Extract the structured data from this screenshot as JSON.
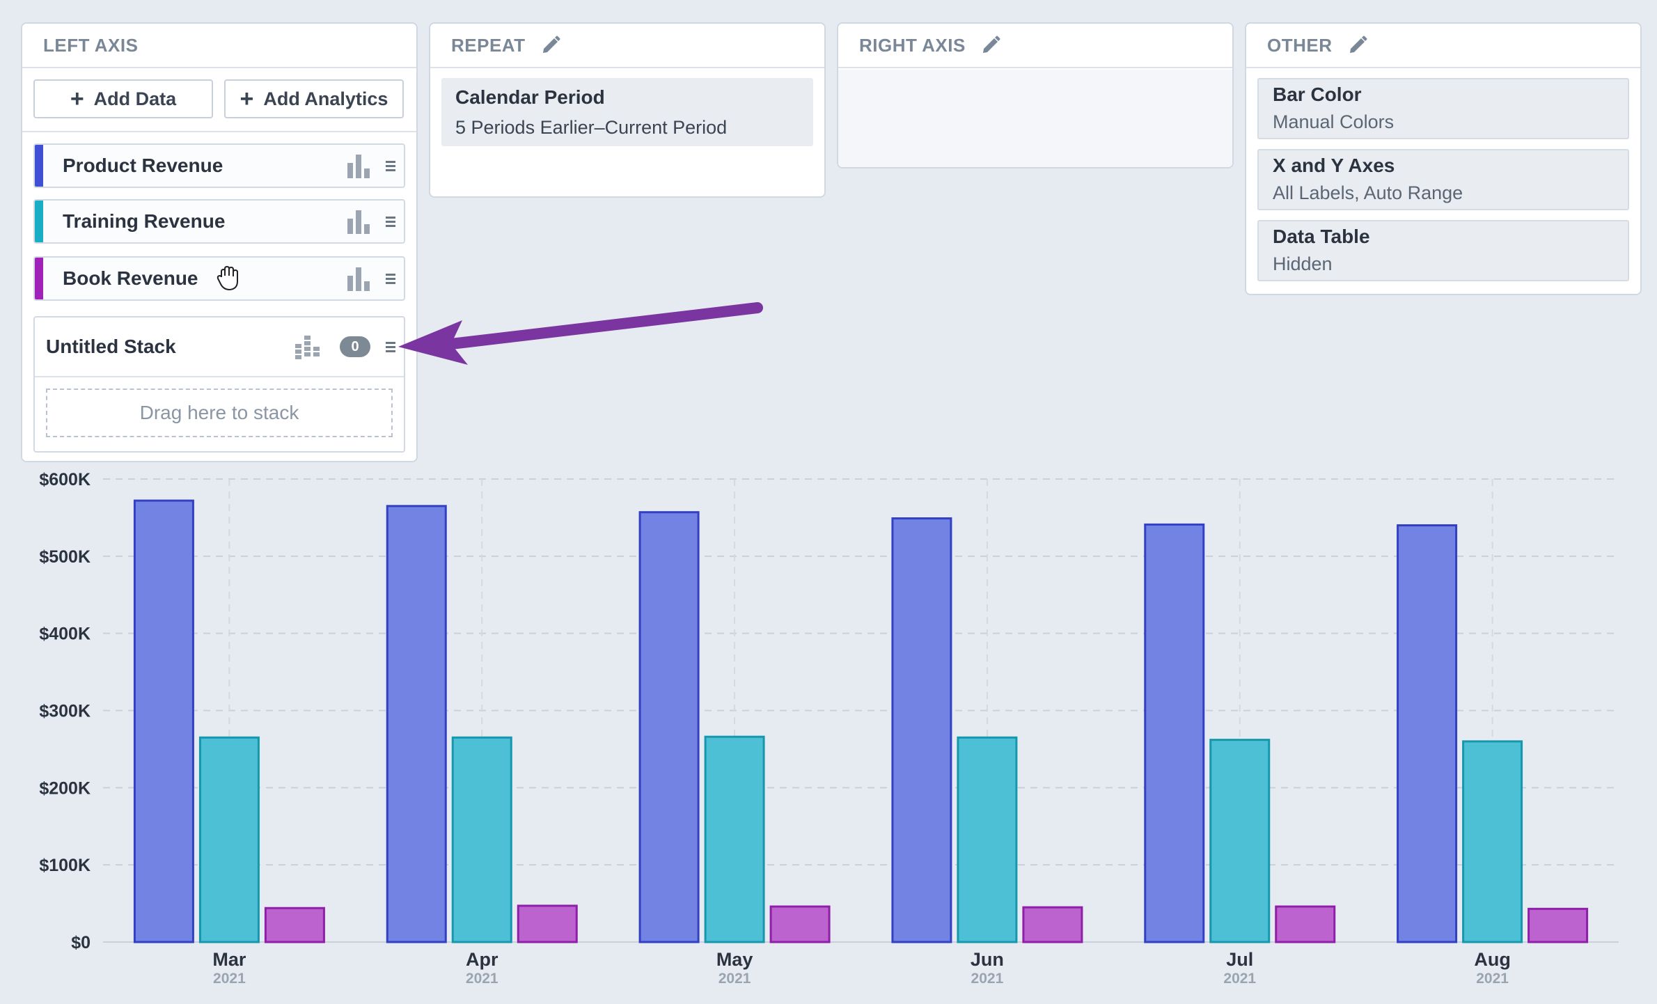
{
  "left_axis": {
    "title": "LEFT AXIS",
    "add_data_label": "Add Data",
    "add_analytics_label": "Add Analytics",
    "series": [
      {
        "label": "Product Revenue",
        "color": "#3f4fd6"
      },
      {
        "label": "Training Revenue",
        "color": "#1aaec4"
      },
      {
        "label": "Book Revenue",
        "color": "#a022b8"
      }
    ],
    "stack": {
      "title": "Untitled Stack",
      "count": "0",
      "drop_hint": "Drag here to stack"
    }
  },
  "repeat": {
    "title": "REPEAT",
    "card_title": "Calendar Period",
    "card_value": "5 Periods Earlier–Current Period"
  },
  "right_axis": {
    "title": "RIGHT AXIS"
  },
  "other": {
    "title": "OTHER",
    "items": [
      {
        "title": "Bar Color",
        "value": "Manual Colors"
      },
      {
        "title": "X and Y Axes",
        "value": "All Labels, Auto Range"
      },
      {
        "title": "Data Table",
        "value": "Hidden"
      }
    ]
  },
  "icons": [
    "plus-icon",
    "pencil-icon",
    "bar-chart-icon",
    "drag-handle-icon",
    "stacked-bar-icon",
    "grab-hand-cursor",
    "pointer-arrow"
  ],
  "accent_colors": {
    "arrow": "#7a35a0"
  },
  "chart_data": {
    "type": "bar",
    "categories": [
      "Mar",
      "Apr",
      "May",
      "Jun",
      "Jul",
      "Aug"
    ],
    "category_sublabels": [
      "2021",
      "2021",
      "2021",
      "2021",
      "2021",
      "2021"
    ],
    "series": [
      {
        "name": "Product Revenue",
        "values": [
          572000,
          565000,
          557000,
          549000,
          541000,
          540000
        ],
        "fill": "#7383e3",
        "stroke": "#3340c4"
      },
      {
        "name": "Training Revenue",
        "values": [
          265000,
          265000,
          266000,
          265000,
          262000,
          260000
        ],
        "fill": "#4ec0d5",
        "stroke": "#1597ae"
      },
      {
        "name": "Book Revenue",
        "values": [
          44000,
          47000,
          46000,
          45000,
          46000,
          43000
        ],
        "fill": "#bd63cf",
        "stroke": "#8e1fa8"
      }
    ],
    "y_ticks": [
      "$0",
      "$100K",
      "$200K",
      "$300K",
      "$400K",
      "$500K",
      "$600K"
    ],
    "ylim": [
      0,
      600000
    ],
    "grid": true,
    "legend": "none",
    "title": "",
    "xlabel": "",
    "ylabel": ""
  }
}
